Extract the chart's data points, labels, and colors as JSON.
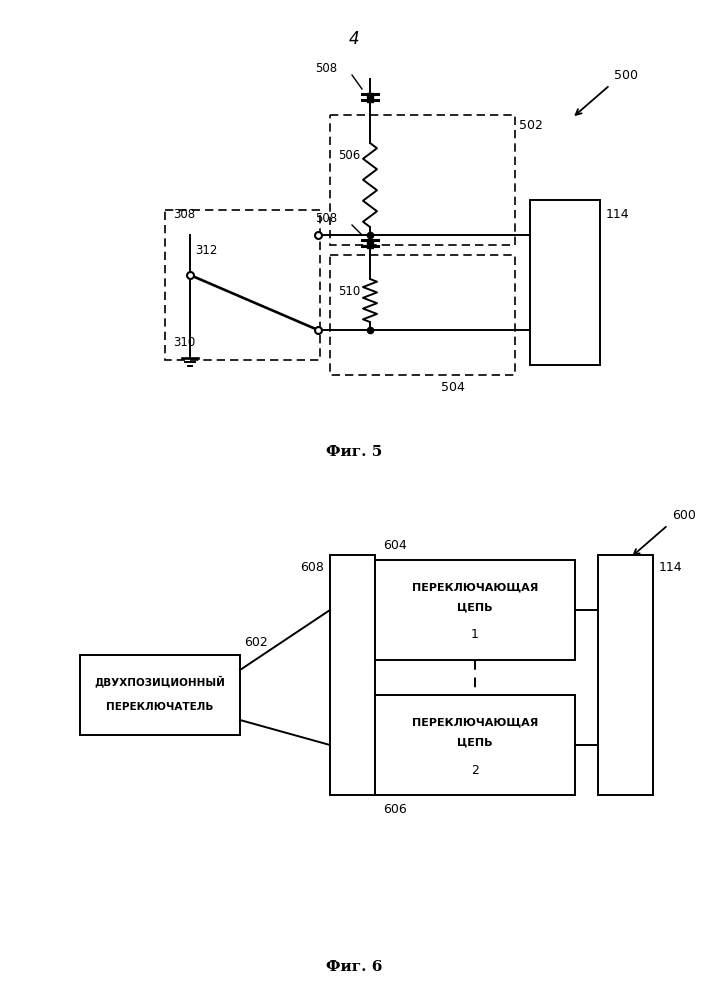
{
  "page_num": "4",
  "fig5_label": "Фиг. 5",
  "fig6_label": "Фиг. 6",
  "bg": "#ffffff",
  "fig5": {
    "500": "500",
    "502": "502",
    "504": "504",
    "506": "506",
    "508a": "508",
    "508b": "508",
    "510": "510",
    "308": "308",
    "310": "310",
    "312": "312",
    "114": "114"
  },
  "fig6": {
    "600": "600",
    "602": "602",
    "604": "604",
    "606": "606",
    "608": "608",
    "114": "114",
    "box1_line1": "ПЕРЕКЛЮЧАЮЩАЯ",
    "box1_line2": "ЦЕПЬ",
    "box1_num": "1",
    "box2_line1": "ПЕРЕКЛЮЧАЮЩАЯ",
    "box2_line2": "ЦЕПЬ",
    "box2_num": "2",
    "sw_line1": "ДВУХПОЗИЦИОННЫЙ",
    "sw_line2": "ПЕРЕКЛЮЧАТЕЛЬ"
  }
}
